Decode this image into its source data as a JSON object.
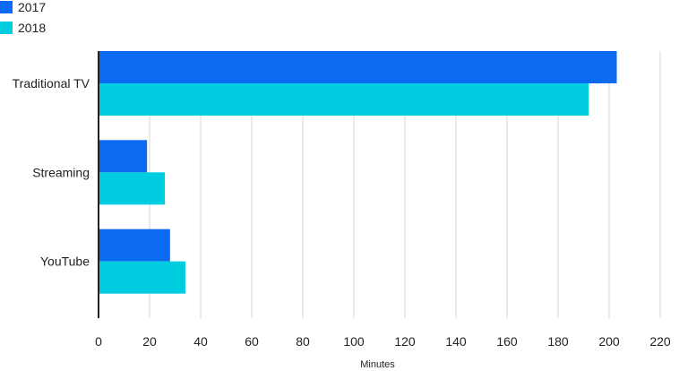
{
  "chart_data": {
    "type": "bar",
    "orientation": "horizontal",
    "categories": [
      "Traditional TV",
      "Streaming",
      "YouTube"
    ],
    "series": [
      {
        "name": "2017",
        "color": "#0b6af2",
        "values": [
          203,
          19,
          28
        ]
      },
      {
        "name": "2018",
        "color": "#00ccdf",
        "values": [
          192,
          26,
          34
        ]
      }
    ],
    "xlabel": "Minutes",
    "ylabel": "",
    "xlim": [
      0,
      220
    ],
    "xticks": [
      0,
      20,
      40,
      60,
      80,
      100,
      120,
      140,
      160,
      180,
      200,
      220
    ],
    "grid": true,
    "legend_position": "top-left"
  }
}
